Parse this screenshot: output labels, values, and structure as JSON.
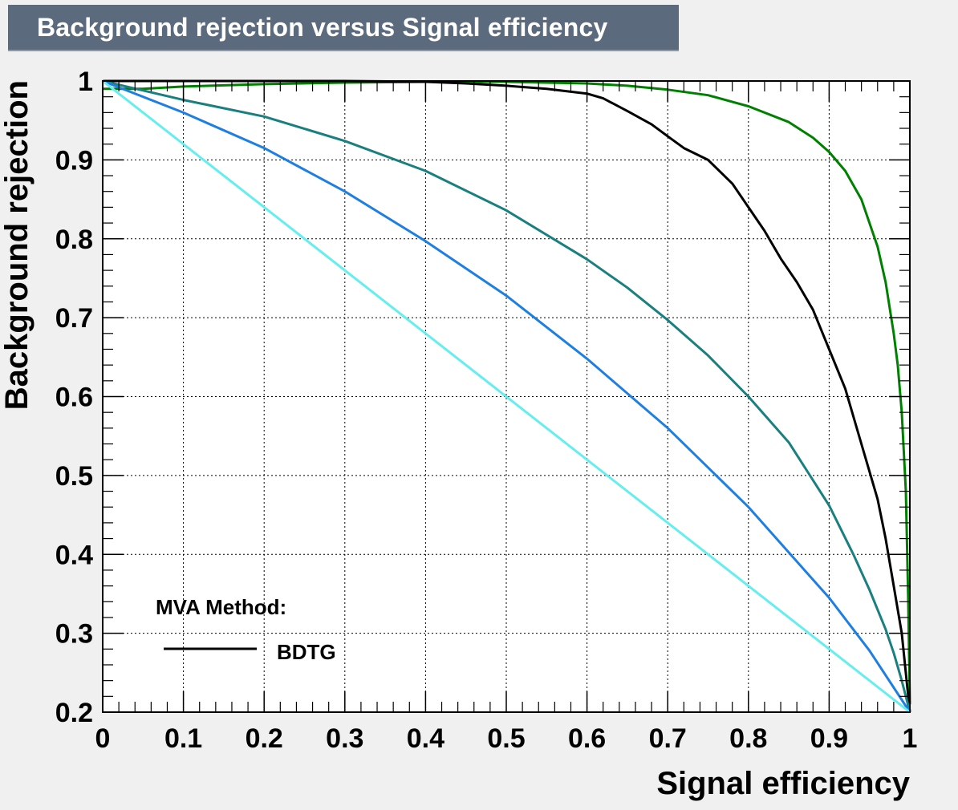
{
  "chart_data": {
    "type": "line",
    "title": "Background rejection versus Signal efficiency",
    "xlabel": "Signal efficiency",
    "ylabel": "Background rejection",
    "xlim": [
      0,
      1
    ],
    "ylim": [
      0.2,
      1
    ],
    "grid": true,
    "x_ticks": [
      "0",
      "0.1",
      "0.2",
      "0.3",
      "0.4",
      "0.5",
      "0.6",
      "0.7",
      "0.8",
      "0.9",
      "1"
    ],
    "y_ticks": [
      "0.2",
      "0.3",
      "0.4",
      "0.5",
      "0.6",
      "0.7",
      "0.8",
      "0.9",
      "1"
    ],
    "legend": {
      "header": "MVA Method:",
      "placement": "bottom-left",
      "entries": [
        {
          "label": "BDTG",
          "color": "#000000"
        }
      ]
    },
    "series": [
      {
        "color": "#008000",
        "x": [
          0,
          0.05,
          0.1,
          0.2,
          0.3,
          0.4,
          0.5,
          0.6,
          0.65,
          0.7,
          0.75,
          0.8,
          0.85,
          0.88,
          0.9,
          0.92,
          0.94,
          0.96,
          0.97,
          0.98,
          0.985,
          0.99,
          0.995,
          0.998,
          1
        ],
        "y": [
          0.99,
          0.99,
          0.993,
          0.996,
          0.998,
          0.999,
          0.999,
          0.997,
          0.994,
          0.989,
          0.982,
          0.968,
          0.948,
          0.928,
          0.91,
          0.886,
          0.85,
          0.79,
          0.745,
          0.68,
          0.64,
          0.58,
          0.48,
          0.34,
          0.21
        ]
      },
      {
        "color": "#000000",
        "x": [
          0,
          0.1,
          0.2,
          0.3,
          0.4,
          0.45,
          0.5,
          0.55,
          0.6,
          0.62,
          0.65,
          0.68,
          0.7,
          0.72,
          0.75,
          0.78,
          0.8,
          0.82,
          0.84,
          0.86,
          0.88,
          0.9,
          0.92,
          0.94,
          0.96,
          0.97,
          0.98,
          0.99,
          1
        ],
        "y": [
          1.0,
          1.0,
          1.0,
          1.0,
          0.999,
          0.997,
          0.994,
          0.99,
          0.984,
          0.978,
          0.962,
          0.945,
          0.93,
          0.915,
          0.9,
          0.87,
          0.84,
          0.81,
          0.775,
          0.745,
          0.71,
          0.66,
          0.61,
          0.54,
          0.47,
          0.42,
          0.36,
          0.3,
          0.2
        ]
      },
      {
        "color": "#1a7f7f",
        "x": [
          0,
          0.05,
          0.1,
          0.2,
          0.3,
          0.4,
          0.5,
          0.6,
          0.65,
          0.7,
          0.75,
          0.8,
          0.85,
          0.9,
          0.93,
          0.95,
          0.97,
          0.98,
          0.99,
          1
        ],
        "y": [
          1.0,
          0.988,
          0.976,
          0.955,
          0.924,
          0.886,
          0.836,
          0.774,
          0.738,
          0.697,
          0.652,
          0.6,
          0.542,
          0.462,
          0.4,
          0.355,
          0.305,
          0.275,
          0.24,
          0.2
        ]
      },
      {
        "color": "#1e7fe0",
        "x": [
          0,
          0.1,
          0.2,
          0.3,
          0.4,
          0.5,
          0.6,
          0.7,
          0.8,
          0.9,
          0.95,
          1
        ],
        "y": [
          1.0,
          0.96,
          0.915,
          0.86,
          0.797,
          0.728,
          0.648,
          0.56,
          0.46,
          0.345,
          0.278,
          0.2
        ]
      },
      {
        "color": "#66eeee",
        "x": [
          0,
          1
        ],
        "y": [
          1.0,
          0.2
        ]
      }
    ]
  }
}
